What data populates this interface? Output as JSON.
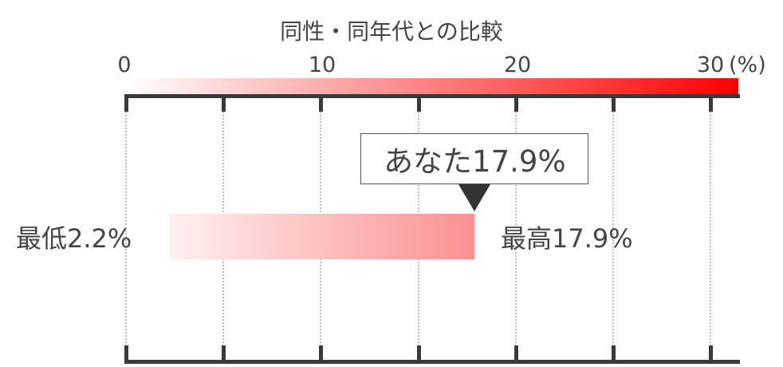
{
  "chart_data": {
    "type": "bar",
    "title": "同性・同年代との比較",
    "x_ticks": [
      "0",
      "10",
      "20",
      "30"
    ],
    "x_unit": "(%)",
    "xlim": [
      0,
      30
    ],
    "range": {
      "min": 2.2,
      "max": 17.9
    },
    "you": 17.9,
    "labels": {
      "you": "あなた17.9%",
      "min": "最低2.2%",
      "max": "最高17.9%"
    },
    "colors": {
      "scale_start": "#ffffff",
      "scale_end": "#ff0000",
      "range_start": "#fff0f0",
      "range_end": "#fa9090",
      "axis": "#3a3a3a",
      "pointer": "#333333"
    },
    "grid": true
  }
}
